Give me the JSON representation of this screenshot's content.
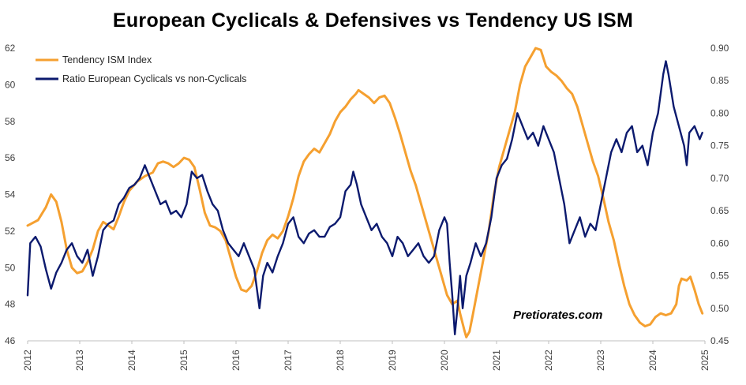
{
  "chart_data": {
    "type": "line",
    "title": "European Cyclicals & Defensives vs Tendency US ISM",
    "watermark": "Pretiorates.com",
    "x_ticks": [
      "2012",
      "2013",
      "2014",
      "2015",
      "2016",
      "2017",
      "2018",
      "2019",
      "2020",
      "2021",
      "2022",
      "2023",
      "2024",
      "2025"
    ],
    "y_left": {
      "ticks": [
        "62",
        "60",
        "58",
        "56",
        "54",
        "52",
        "50",
        "48",
        "46"
      ],
      "ylim": [
        46,
        62
      ]
    },
    "y_right": {
      "ticks": [
        "0.90",
        "0.85",
        "0.80",
        "0.75",
        "0.70",
        "0.65",
        "0.60",
        "0.55",
        "0.50",
        "0.45"
      ],
      "ylim": [
        0.45,
        0.9
      ]
    },
    "grid": false,
    "legend_position": "top-left",
    "series": [
      {
        "name": "Tendency ISM Index",
        "axis": "left",
        "color": "#F5A030",
        "points": [
          [
            2012.0,
            52.3
          ],
          [
            2012.2,
            52.6
          ],
          [
            2012.35,
            53.3
          ],
          [
            2012.45,
            54.0
          ],
          [
            2012.55,
            53.6
          ],
          [
            2012.65,
            52.5
          ],
          [
            2012.75,
            51.0
          ],
          [
            2012.85,
            50.0
          ],
          [
            2012.95,
            49.7
          ],
          [
            2013.05,
            49.8
          ],
          [
            2013.15,
            50.3
          ],
          [
            2013.25,
            51.0
          ],
          [
            2013.35,
            52.0
          ],
          [
            2013.45,
            52.5
          ],
          [
            2013.55,
            52.3
          ],
          [
            2013.65,
            52.1
          ],
          [
            2013.75,
            52.8
          ],
          [
            2013.85,
            53.6
          ],
          [
            2013.95,
            54.2
          ],
          [
            2014.1,
            54.7
          ],
          [
            2014.25,
            55.0
          ],
          [
            2014.4,
            55.2
          ],
          [
            2014.5,
            55.7
          ],
          [
            2014.6,
            55.8
          ],
          [
            2014.7,
            55.7
          ],
          [
            2014.8,
            55.5
          ],
          [
            2014.9,
            55.7
          ],
          [
            2015.0,
            56.0
          ],
          [
            2015.1,
            55.9
          ],
          [
            2015.2,
            55.5
          ],
          [
            2015.3,
            54.3
          ],
          [
            2015.4,
            53.0
          ],
          [
            2015.5,
            52.3
          ],
          [
            2015.6,
            52.2
          ],
          [
            2015.7,
            52.0
          ],
          [
            2015.8,
            51.5
          ],
          [
            2015.9,
            50.5
          ],
          [
            2016.0,
            49.5
          ],
          [
            2016.1,
            48.8
          ],
          [
            2016.2,
            48.7
          ],
          [
            2016.3,
            49.0
          ],
          [
            2016.4,
            49.8
          ],
          [
            2016.5,
            50.8
          ],
          [
            2016.6,
            51.5
          ],
          [
            2016.7,
            51.8
          ],
          [
            2016.8,
            51.6
          ],
          [
            2016.9,
            52.0
          ],
          [
            2017.0,
            52.8
          ],
          [
            2017.1,
            53.8
          ],
          [
            2017.2,
            55.0
          ],
          [
            2017.3,
            55.8
          ],
          [
            2017.4,
            56.2
          ],
          [
            2017.5,
            56.5
          ],
          [
            2017.6,
            56.3
          ],
          [
            2017.7,
            56.8
          ],
          [
            2017.8,
            57.3
          ],
          [
            2017.9,
            58.0
          ],
          [
            2018.0,
            58.5
          ],
          [
            2018.1,
            58.8
          ],
          [
            2018.2,
            59.2
          ],
          [
            2018.3,
            59.5
          ],
          [
            2018.35,
            59.7
          ],
          [
            2018.45,
            59.5
          ],
          [
            2018.55,
            59.3
          ],
          [
            2018.65,
            59.0
          ],
          [
            2018.75,
            59.3
          ],
          [
            2018.85,
            59.4
          ],
          [
            2018.95,
            59.0
          ],
          [
            2019.05,
            58.2
          ],
          [
            2019.15,
            57.3
          ],
          [
            2019.25,
            56.3
          ],
          [
            2019.35,
            55.3
          ],
          [
            2019.45,
            54.5
          ],
          [
            2019.55,
            53.5
          ],
          [
            2019.65,
            52.5
          ],
          [
            2019.75,
            51.5
          ],
          [
            2019.85,
            50.5
          ],
          [
            2019.95,
            49.5
          ],
          [
            2020.05,
            48.5
          ],
          [
            2020.15,
            48.0
          ],
          [
            2020.25,
            48.2
          ],
          [
            2020.3,
            47.5
          ],
          [
            2020.38,
            46.6
          ],
          [
            2020.42,
            46.2
          ],
          [
            2020.48,
            46.5
          ],
          [
            2020.55,
            47.5
          ],
          [
            2020.65,
            49.0
          ],
          [
            2020.75,
            50.5
          ],
          [
            2020.85,
            52.0
          ],
          [
            2020.95,
            54.0
          ],
          [
            2021.05,
            55.5
          ],
          [
            2021.15,
            56.5
          ],
          [
            2021.25,
            57.5
          ],
          [
            2021.35,
            58.5
          ],
          [
            2021.45,
            60.0
          ],
          [
            2021.55,
            61.0
          ],
          [
            2021.65,
            61.5
          ],
          [
            2021.75,
            62.0
          ],
          [
            2021.85,
            61.9
          ],
          [
            2021.95,
            61.0
          ],
          [
            2022.05,
            60.7
          ],
          [
            2022.15,
            60.5
          ],
          [
            2022.25,
            60.2
          ],
          [
            2022.35,
            59.8
          ],
          [
            2022.45,
            59.5
          ],
          [
            2022.55,
            58.8
          ],
          [
            2022.65,
            57.8
          ],
          [
            2022.75,
            56.8
          ],
          [
            2022.85,
            55.8
          ],
          [
            2022.95,
            55.0
          ],
          [
            2023.05,
            53.8
          ],
          [
            2023.15,
            52.5
          ],
          [
            2023.25,
            51.5
          ],
          [
            2023.35,
            50.2
          ],
          [
            2023.45,
            49.0
          ],
          [
            2023.55,
            48.0
          ],
          [
            2023.65,
            47.4
          ],
          [
            2023.75,
            47.0
          ],
          [
            2023.85,
            46.8
          ],
          [
            2023.95,
            46.9
          ],
          [
            2024.05,
            47.3
          ],
          [
            2024.15,
            47.5
          ],
          [
            2024.25,
            47.4
          ],
          [
            2024.35,
            47.5
          ],
          [
            2024.45,
            48.0
          ],
          [
            2024.5,
            49.0
          ],
          [
            2024.55,
            49.4
          ],
          [
            2024.65,
            49.3
          ],
          [
            2024.72,
            49.5
          ],
          [
            2024.8,
            48.8
          ],
          [
            2024.88,
            48.0
          ],
          [
            2024.95,
            47.5
          ]
        ]
      },
      {
        "name": "Ratio European Cyclicals vs non-Cyclicals",
        "axis": "right",
        "color": "#0C1A6E",
        "points": [
          [
            2012.0,
            0.52
          ],
          [
            2012.05,
            0.6
          ],
          [
            2012.15,
            0.61
          ],
          [
            2012.25,
            0.595
          ],
          [
            2012.35,
            0.56
          ],
          [
            2012.45,
            0.53
          ],
          [
            2012.55,
            0.555
          ],
          [
            2012.65,
            0.57
          ],
          [
            2012.75,
            0.59
          ],
          [
            2012.85,
            0.6
          ],
          [
            2012.95,
            0.58
          ],
          [
            2013.05,
            0.57
          ],
          [
            2013.15,
            0.59
          ],
          [
            2013.25,
            0.55
          ],
          [
            2013.35,
            0.58
          ],
          [
            2013.45,
            0.62
          ],
          [
            2013.55,
            0.63
          ],
          [
            2013.65,
            0.635
          ],
          [
            2013.75,
            0.66
          ],
          [
            2013.85,
            0.67
          ],
          [
            2013.95,
            0.685
          ],
          [
            2014.05,
            0.69
          ],
          [
            2014.15,
            0.7
          ],
          [
            2014.25,
            0.72
          ],
          [
            2014.35,
            0.7
          ],
          [
            2014.45,
            0.68
          ],
          [
            2014.55,
            0.66
          ],
          [
            2014.65,
            0.665
          ],
          [
            2014.75,
            0.645
          ],
          [
            2014.85,
            0.65
          ],
          [
            2014.95,
            0.64
          ],
          [
            2015.05,
            0.66
          ],
          [
            2015.15,
            0.71
          ],
          [
            2015.25,
            0.7
          ],
          [
            2015.35,
            0.705
          ],
          [
            2015.45,
            0.68
          ],
          [
            2015.55,
            0.66
          ],
          [
            2015.65,
            0.65
          ],
          [
            2015.75,
            0.62
          ],
          [
            2015.85,
            0.6
          ],
          [
            2015.95,
            0.59
          ],
          [
            2016.05,
            0.58
          ],
          [
            2016.15,
            0.6
          ],
          [
            2016.25,
            0.58
          ],
          [
            2016.35,
            0.56
          ],
          [
            2016.45,
            0.5
          ],
          [
            2016.52,
            0.55
          ],
          [
            2016.6,
            0.57
          ],
          [
            2016.7,
            0.555
          ],
          [
            2016.8,
            0.58
          ],
          [
            2016.9,
            0.6
          ],
          [
            2017.0,
            0.63
          ],
          [
            2017.1,
            0.64
          ],
          [
            2017.2,
            0.61
          ],
          [
            2017.3,
            0.6
          ],
          [
            2017.4,
            0.615
          ],
          [
            2017.5,
            0.62
          ],
          [
            2017.6,
            0.61
          ],
          [
            2017.7,
            0.61
          ],
          [
            2017.8,
            0.625
          ],
          [
            2017.9,
            0.63
          ],
          [
            2018.0,
            0.64
          ],
          [
            2018.1,
            0.68
          ],
          [
            2018.2,
            0.69
          ],
          [
            2018.25,
            0.71
          ],
          [
            2018.32,
            0.69
          ],
          [
            2018.4,
            0.66
          ],
          [
            2018.5,
            0.64
          ],
          [
            2018.6,
            0.62
          ],
          [
            2018.7,
            0.63
          ],
          [
            2018.8,
            0.61
          ],
          [
            2018.9,
            0.6
          ],
          [
            2019.0,
            0.58
          ],
          [
            2019.1,
            0.61
          ],
          [
            2019.2,
            0.6
          ],
          [
            2019.3,
            0.58
          ],
          [
            2019.4,
            0.59
          ],
          [
            2019.5,
            0.6
          ],
          [
            2019.6,
            0.58
          ],
          [
            2019.7,
            0.57
          ],
          [
            2019.8,
            0.58
          ],
          [
            2019.9,
            0.62
          ],
          [
            2020.0,
            0.64
          ],
          [
            2020.05,
            0.63
          ],
          [
            2020.1,
            0.57
          ],
          [
            2020.15,
            0.52
          ],
          [
            2020.2,
            0.46
          ],
          [
            2020.25,
            0.5
          ],
          [
            2020.3,
            0.55
          ],
          [
            2020.35,
            0.5
          ],
          [
            2020.42,
            0.55
          ],
          [
            2020.5,
            0.57
          ],
          [
            2020.6,
            0.6
          ],
          [
            2020.7,
            0.58
          ],
          [
            2020.8,
            0.6
          ],
          [
            2020.9,
            0.64
          ],
          [
            2021.0,
            0.7
          ],
          [
            2021.1,
            0.72
          ],
          [
            2021.2,
            0.73
          ],
          [
            2021.3,
            0.76
          ],
          [
            2021.4,
            0.8
          ],
          [
            2021.5,
            0.78
          ],
          [
            2021.6,
            0.76
          ],
          [
            2021.7,
            0.77
          ],
          [
            2021.8,
            0.75
          ],
          [
            2021.9,
            0.78
          ],
          [
            2022.0,
            0.76
          ],
          [
            2022.1,
            0.74
          ],
          [
            2022.2,
            0.7
          ],
          [
            2022.3,
            0.66
          ],
          [
            2022.4,
            0.6
          ],
          [
            2022.5,
            0.62
          ],
          [
            2022.6,
            0.64
          ],
          [
            2022.7,
            0.61
          ],
          [
            2022.8,
            0.63
          ],
          [
            2022.9,
            0.62
          ],
          [
            2023.0,
            0.66
          ],
          [
            2023.1,
            0.7
          ],
          [
            2023.2,
            0.74
          ],
          [
            2023.3,
            0.76
          ],
          [
            2023.4,
            0.74
          ],
          [
            2023.5,
            0.77
          ],
          [
            2023.6,
            0.78
          ],
          [
            2023.7,
            0.74
          ],
          [
            2023.8,
            0.75
          ],
          [
            2023.9,
            0.72
          ],
          [
            2024.0,
            0.77
          ],
          [
            2024.1,
            0.8
          ],
          [
            2024.2,
            0.86
          ],
          [
            2024.25,
            0.88
          ],
          [
            2024.3,
            0.86
          ],
          [
            2024.4,
            0.81
          ],
          [
            2024.5,
            0.78
          ],
          [
            2024.6,
            0.75
          ],
          [
            2024.65,
            0.72
          ],
          [
            2024.7,
            0.77
          ],
          [
            2024.8,
            0.78
          ],
          [
            2024.9,
            0.76
          ],
          [
            2024.95,
            0.77
          ]
        ]
      }
    ]
  }
}
